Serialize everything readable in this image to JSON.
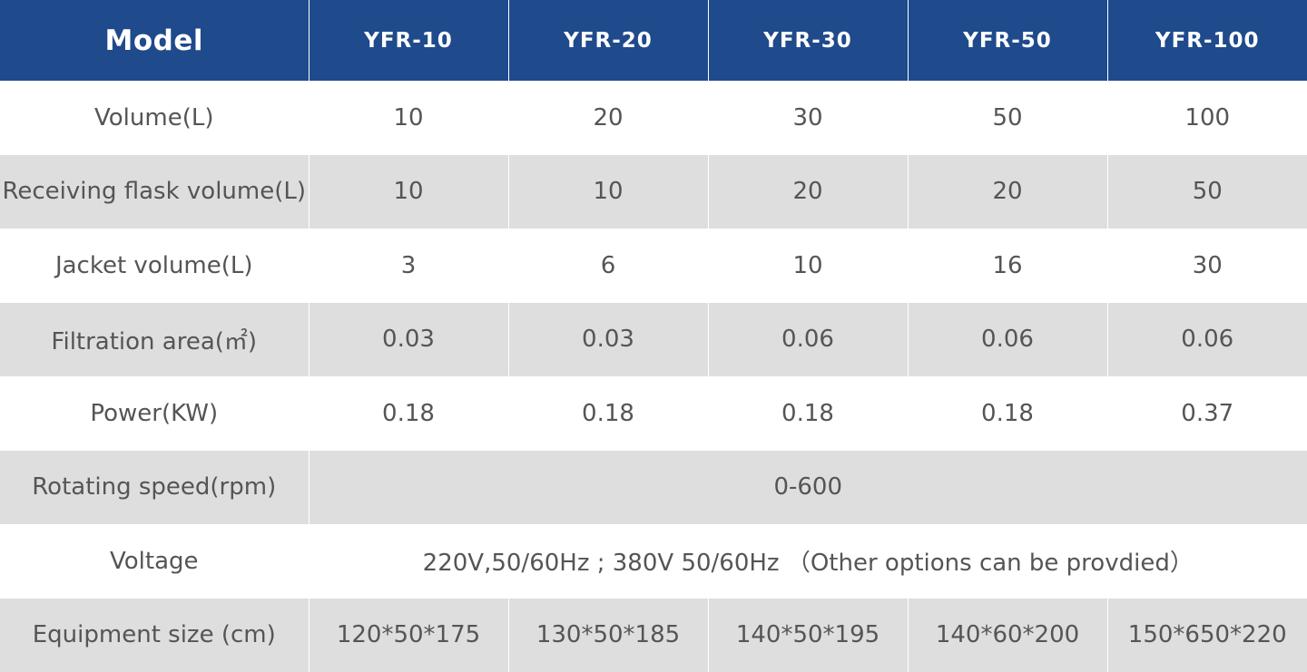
{
  "header": {
    "label": "Model",
    "models": [
      "YFR-10",
      "YFR-20",
      "YFR-30",
      "YFR-50",
      "YFR-100"
    ]
  },
  "rows": [
    {
      "label": "Volume(L)",
      "values": [
        "10",
        "20",
        "30",
        "50",
        "100"
      ]
    },
    {
      "label": "Receiving flask volume(L)",
      "values": [
        "10",
        "10",
        "20",
        "20",
        "50"
      ]
    },
    {
      "label": "Jacket volume(L)",
      "values": [
        "3",
        "6",
        "10",
        "16",
        "30"
      ]
    },
    {
      "label": "Filtration area(㎡)",
      "values": [
        "0.03",
        "0.03",
        "0.06",
        "0.06",
        "0.06"
      ]
    },
    {
      "label": "Power(KW)",
      "values": [
        "0.18",
        "0.18",
        "0.18",
        "0.18",
        "0.37"
      ]
    },
    {
      "label": "Rotating speed(rpm)",
      "span_value": "0-600"
    },
    {
      "label": "Voltage",
      "span_value": "220V,50/60Hz ; 380V 50/60Hz （Other options can be provdied）"
    },
    {
      "label": "Equipment size (cm)",
      "values": [
        "120*50*175",
        "130*50*185",
        "140*50*195",
        "140*60*200",
        "150*650*220"
      ]
    }
  ],
  "colors": {
    "header_bg": "#1f4a8c",
    "header_text": "#ffffff",
    "row_alt_bg": "#dedede",
    "body_text": "#555555"
  }
}
